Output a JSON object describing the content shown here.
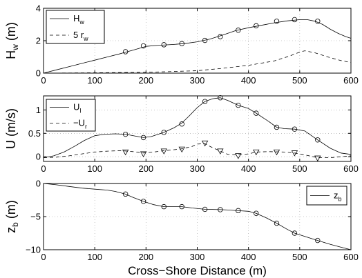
{
  "chart_data": [
    {
      "type": "line",
      "ylabel": "H",
      "ylabel_sub": "w",
      "ylabel_unit": " (m)",
      "xlim": [
        0,
        600
      ],
      "ylim": [
        0,
        4
      ],
      "xticks": [
        0,
        100,
        200,
        300,
        400,
        500,
        600
      ],
      "yticks": [
        0,
        2,
        4
      ],
      "grid": true,
      "legend_position": "top-left",
      "series": [
        {
          "name": "H",
          "name_sub": "w",
          "style": "solid",
          "x": [
            0,
            25,
            50,
            75,
            100,
            125,
            150,
            175,
            200,
            225,
            250,
            275,
            300,
            325,
            350,
            375,
            400,
            425,
            450,
            475,
            500,
            515,
            530,
            545,
            560,
            575,
            590,
            600
          ],
          "y": [
            0.0,
            0.2,
            0.4,
            0.6,
            0.8,
            1.0,
            1.2,
            1.42,
            1.65,
            1.72,
            1.76,
            1.82,
            1.93,
            2.1,
            2.35,
            2.62,
            2.8,
            2.95,
            3.1,
            3.22,
            3.3,
            3.3,
            3.2,
            3.0,
            2.7,
            2.45,
            2.25,
            2.15
          ]
        },
        {
          "name": "5 r",
          "name_sub": "w",
          "style": "dashed",
          "x": [
            0,
            100,
            200,
            250,
            300,
            350,
            400,
            450,
            480,
            500,
            510,
            530,
            560,
            580,
            600
          ],
          "y": [
            0.0,
            0.02,
            0.05,
            0.1,
            0.15,
            0.3,
            0.48,
            0.75,
            1.05,
            1.3,
            1.38,
            1.25,
            0.95,
            0.78,
            0.65
          ]
        },
        {
          "name": "",
          "style": "markers-circle",
          "x": [
            160,
            195,
            235,
            270,
            315,
            345,
            380,
            415,
            455,
            490,
            535
          ],
          "y": [
            1.32,
            1.68,
            1.75,
            1.82,
            2.02,
            2.25,
            2.65,
            2.92,
            3.2,
            3.3,
            3.2
          ]
        }
      ]
    },
    {
      "type": "line",
      "ylabel": "U (m/s)",
      "xlim": [
        0,
        600
      ],
      "ylim": [
        -0.1,
        1.3
      ],
      "xticks": [
        0,
        100,
        200,
        300,
        400,
        500,
        600
      ],
      "yticks": [
        0,
        0.5,
        1
      ],
      "grid": true,
      "legend_position": "top-left",
      "series": [
        {
          "name": "U",
          "name_sub": "l",
          "style": "solid",
          "x": [
            0,
            20,
            40,
            60,
            80,
            100,
            120,
            140,
            160,
            180,
            195,
            210,
            235,
            255,
            270,
            285,
            300,
            315,
            330,
            345,
            360,
            380,
            400,
            415,
            440,
            455,
            470,
            490,
            510,
            535,
            560,
            580,
            600
          ],
          "y": [
            -0.02,
            0.02,
            0.1,
            0.22,
            0.35,
            0.45,
            0.48,
            0.49,
            0.48,
            0.44,
            0.41,
            0.43,
            0.52,
            0.62,
            0.72,
            0.88,
            1.05,
            1.18,
            1.24,
            1.26,
            1.2,
            1.1,
            1.03,
            0.93,
            0.75,
            0.63,
            0.6,
            0.59,
            0.55,
            0.36,
            0.18,
            0.08,
            0.05
          ]
        },
        {
          "name": "−U",
          "name_sub": "r",
          "style": "dashed",
          "x": [
            0,
            25,
            50,
            75,
            100,
            125,
            150,
            175,
            195,
            215,
            235,
            255,
            270,
            290,
            300,
            315,
            325,
            345,
            360,
            380,
            400,
            415,
            440,
            470,
            490,
            510,
            535,
            560,
            580,
            600
          ],
          "y": [
            -0.02,
            -0.01,
            0.02,
            0.06,
            0.1,
            0.12,
            0.13,
            0.11,
            0.08,
            0.1,
            0.13,
            0.15,
            0.17,
            0.22,
            0.27,
            0.28,
            0.22,
            0.12,
            0.05,
            0.04,
            0.06,
            0.1,
            0.11,
            0.1,
            0.08,
            0.04,
            -0.02,
            -0.02,
            0.0,
            0.02
          ]
        },
        {
          "name": "",
          "style": "markers-circle",
          "x": [
            160,
            195,
            235,
            270,
            315,
            345,
            380,
            415,
            455,
            490,
            535
          ],
          "y": [
            0.48,
            0.41,
            0.52,
            0.7,
            1.18,
            1.26,
            1.1,
            0.93,
            0.63,
            0.59,
            0.36
          ]
        },
        {
          "name": "",
          "style": "markers-triangle-down",
          "x": [
            160,
            195,
            235,
            270,
            315,
            345,
            380,
            415,
            455,
            490,
            535
          ],
          "y": [
            0.1,
            0.06,
            0.12,
            0.16,
            0.29,
            0.12,
            0.02,
            0.1,
            0.1,
            0.08,
            -0.03
          ]
        }
      ]
    },
    {
      "type": "line",
      "ylabel": "z",
      "ylabel_sub": "b",
      "ylabel_unit": " (m)",
      "xlabel": "Cross−Shore Distance (m)",
      "xlim": [
        0,
        600
      ],
      "ylim": [
        -10,
        0
      ],
      "xticks": [
        0,
        100,
        200,
        300,
        400,
        500,
        600
      ],
      "yticks": [
        -10,
        -5,
        0
      ],
      "grid": true,
      "legend_position": "top-right",
      "series": [
        {
          "name": "z",
          "name_sub": "b",
          "style": "solid",
          "x": [
            0,
            25,
            50,
            75,
            100,
            125,
            140,
            160,
            175,
            195,
            215,
            235,
            255,
            270,
            290,
            315,
            345,
            360,
            380,
            400,
            415,
            435,
            455,
            475,
            490,
            510,
            535,
            560,
            580,
            600
          ],
          "y": [
            0.0,
            -0.2,
            -0.45,
            -0.7,
            -0.85,
            -1.0,
            -1.2,
            -1.6,
            -2.1,
            -2.7,
            -3.2,
            -3.5,
            -3.5,
            -3.5,
            -3.7,
            -3.9,
            -3.95,
            -4.0,
            -4.1,
            -4.2,
            -4.5,
            -5.2,
            -6.0,
            -6.9,
            -7.5,
            -8.0,
            -8.6,
            -9.2,
            -9.6,
            -10.0
          ]
        },
        {
          "name": "",
          "style": "markers-circle",
          "x": [
            160,
            195,
            235,
            270,
            315,
            345,
            380,
            415,
            455,
            490,
            535
          ],
          "y": [
            -1.6,
            -2.7,
            -3.5,
            -3.5,
            -3.9,
            -3.95,
            -4.1,
            -4.5,
            -6.0,
            -7.5,
            -8.6
          ]
        }
      ]
    }
  ]
}
